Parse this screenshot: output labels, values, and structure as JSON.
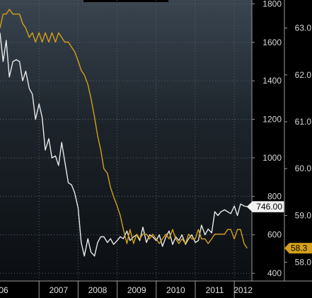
{
  "chart_data": {
    "type": "line",
    "title": "",
    "xlabel": "",
    "ylabel": "",
    "grid": true,
    "x_ticks": [
      "06",
      "2007",
      "2008",
      "2009",
      "2010",
      "2011",
      "2012"
    ],
    "x_range": [
      2006.0,
      2012.45
    ],
    "left_axis": {
      "ticks": [
        "400",
        "600",
        "800",
        "1000",
        "1200",
        "1400",
        "1600",
        "1800"
      ],
      "range": [
        360,
        1820
      ]
    },
    "right_axis": {
      "ticks": [
        "58.0",
        "59.0",
        "60.0",
        "61.0",
        "62.0",
        "63.0"
      ],
      "range": [
        57.6,
        63.6
      ]
    },
    "series": [
      {
        "name": "",
        "axis": "left",
        "color": "#e8e8e8",
        "last_label": "746.00",
        "x": [
          2006.0,
          2006.08,
          2006.16,
          2006.24,
          2006.33,
          2006.42,
          2006.5,
          2006.58,
          2006.66,
          2006.75,
          2006.83,
          2006.91,
          2007.0,
          2007.08,
          2007.16,
          2007.25,
          2007.33,
          2007.42,
          2007.5,
          2007.58,
          2007.66,
          2007.75,
          2007.83,
          2007.91,
          2008.0,
          2008.08,
          2008.16,
          2008.25,
          2008.33,
          2008.42,
          2008.5,
          2008.58,
          2008.66,
          2008.75,
          2008.83,
          2008.91,
          2009.0,
          2009.08,
          2009.16,
          2009.25,
          2009.33,
          2009.42,
          2009.5,
          2009.58,
          2009.66,
          2009.75,
          2009.83,
          2009.91,
          2010.0,
          2010.08,
          2010.16,
          2010.25,
          2010.33,
          2010.42,
          2010.5,
          2010.58,
          2010.66,
          2010.75,
          2010.83,
          2010.91,
          2011.0,
          2011.08,
          2011.16,
          2011.25,
          2011.33,
          2011.42,
          2011.5,
          2011.58,
          2011.66,
          2011.75,
          2011.83,
          2011.91,
          2012.0,
          2012.08,
          2012.16,
          2012.25,
          2012.33
        ],
        "values": [
          1650,
          1500,
          1610,
          1420,
          1500,
          1510,
          1500,
          1400,
          1450,
          1360,
          1330,
          1200,
          1280,
          1210,
          1040,
          1100,
          1000,
          1010,
          960,
          1080,
          980,
          870,
          860,
          820,
          740,
          560,
          490,
          580,
          510,
          490,
          560,
          590,
          590,
          560,
          580,
          550,
          570,
          590,
          580,
          620,
          570,
          590,
          600,
          570,
          640,
          560,
          600,
          590,
          570,
          600,
          540,
          590,
          620,
          550,
          590,
          570,
          600,
          550,
          580,
          600,
          560,
          570,
          650,
          600,
          630,
          610,
          720,
          700,
          720,
          730,
          720,
          710,
          750,
          700,
          760,
          750,
          746
        ]
      },
      {
        "name": "",
        "axis": "right",
        "color": "#d4a017",
        "last_label": "58.3",
        "x": [
          2006.0,
          2006.08,
          2006.16,
          2006.24,
          2006.33,
          2006.42,
          2006.5,
          2006.58,
          2006.66,
          2006.75,
          2006.83,
          2006.91,
          2007.0,
          2007.08,
          2007.16,
          2007.25,
          2007.33,
          2007.42,
          2007.5,
          2007.58,
          2007.66,
          2007.75,
          2007.83,
          2007.91,
          2008.0,
          2008.08,
          2008.16,
          2008.25,
          2008.33,
          2008.42,
          2008.5,
          2008.58,
          2008.66,
          2008.75,
          2008.83,
          2008.91,
          2009.0,
          2009.08,
          2009.16,
          2009.25,
          2009.33,
          2009.42,
          2009.5,
          2009.58,
          2009.66,
          2009.75,
          2009.83,
          2009.91,
          2010.0,
          2010.08,
          2010.16,
          2010.25,
          2010.33,
          2010.42,
          2010.5,
          2010.58,
          2010.66,
          2010.75,
          2010.83,
          2010.91,
          2011.0,
          2011.08,
          2011.16,
          2011.25,
          2011.33,
          2011.42,
          2011.5,
          2011.58,
          2011.66,
          2011.75,
          2011.83,
          2011.91,
          2012.0,
          2012.08,
          2012.16,
          2012.25,
          2012.33
        ],
        "values": [
          63.0,
          63.3,
          63.3,
          63.4,
          63.3,
          63.3,
          63.3,
          63.1,
          63.0,
          62.8,
          62.9,
          62.7,
          62.9,
          62.7,
          62.9,
          62.7,
          62.9,
          62.7,
          62.9,
          62.8,
          62.7,
          62.7,
          62.6,
          62.5,
          62.3,
          62.1,
          62.0,
          61.8,
          61.5,
          61.1,
          60.7,
          60.4,
          60.0,
          59.9,
          59.6,
          59.4,
          59.2,
          59.0,
          58.7,
          58.4,
          58.7,
          58.4,
          58.6,
          58.5,
          58.6,
          58.6,
          58.5,
          58.6,
          58.5,
          58.4,
          58.5,
          58.6,
          58.5,
          58.7,
          58.5,
          58.4,
          58.5,
          58.4,
          58.6,
          58.5,
          58.5,
          58.7,
          58.5,
          58.5,
          58.4,
          58.5,
          58.6,
          58.6,
          58.6,
          58.6,
          58.7,
          58.7,
          58.5,
          58.7,
          58.7,
          58.4,
          58.3
        ]
      }
    ]
  }
}
